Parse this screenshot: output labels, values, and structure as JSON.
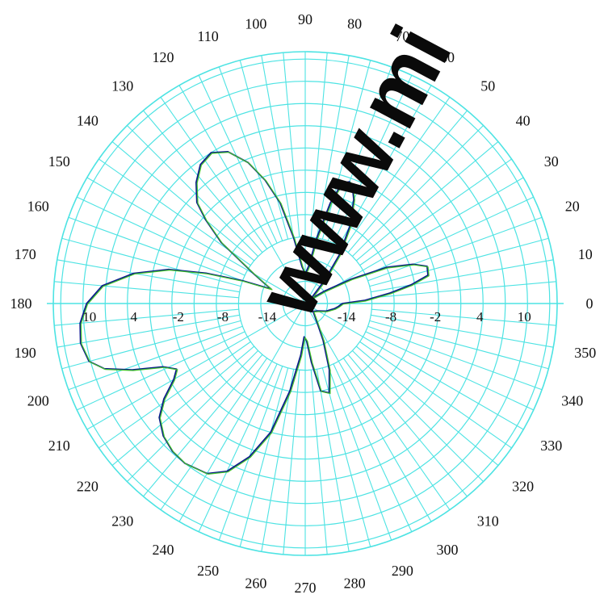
{
  "chart_data": {
    "type": "polar",
    "title": "",
    "angle_unit": "degrees",
    "angle_ticks": [
      "0",
      "10",
      "20",
      "30",
      "40",
      "50",
      "60",
      "70",
      "80",
      "90",
      "100",
      "110",
      "120",
      "130",
      "140",
      "150",
      "160",
      "170",
      "180",
      "190",
      "200",
      "210",
      "220",
      "230",
      "240",
      "250",
      "260",
      "270",
      "280",
      "290",
      "300",
      "310",
      "320",
      "330",
      "340",
      "350"
    ],
    "angular_grid_step_deg": 5,
    "radial_scale": {
      "min": -20,
      "max": 14,
      "rings": [
        -17,
        -14,
        -11,
        -8,
        -5,
        -2,
        1,
        4,
        7,
        10,
        13
      ],
      "labeled_rings_left": [
        "10",
        "4",
        "-2",
        "-8",
        "-14"
      ],
      "labeled_rings_right": [
        "-14",
        "-8",
        "-2",
        "4",
        "10"
      ]
    },
    "grid_color": "#4de3e3",
    "series": [
      {
        "color": "#0b1a8c",
        "points": [
          [
            0,
            -15
          ],
          [
            3,
            -12
          ],
          [
            7,
            -8.5
          ],
          [
            10,
            -5.5
          ],
          [
            13,
            -3
          ],
          [
            17,
            -2.8
          ],
          [
            20,
            -4.5
          ],
          [
            24,
            -8
          ],
          [
            28,
            -13
          ],
          [
            33,
            -17
          ],
          [
            40,
            -19
          ],
          [
            50,
            -16
          ],
          [
            55,
            -12
          ],
          [
            60,
            -8
          ],
          [
            65,
            -4.5
          ],
          [
            68,
            -3
          ],
          [
            70,
            -2.5
          ],
          [
            73,
            -3
          ],
          [
            76,
            -6
          ],
          [
            80,
            -11
          ],
          [
            85,
            -15
          ],
          [
            90,
            -16
          ],
          [
            95,
            -15
          ],
          [
            100,
            -11
          ],
          [
            104,
            -6
          ],
          [
            108,
            -2.5
          ],
          [
            112,
            0.5
          ],
          [
            117,
            3
          ],
          [
            122,
            4
          ],
          [
            127,
            3.5
          ],
          [
            132,
            2
          ],
          [
            137,
            0
          ],
          [
            140,
            -2.5
          ],
          [
            144,
            -6
          ],
          [
            150,
            -12
          ],
          [
            154,
            -14
          ],
          [
            157,
            -15
          ],
          [
            160,
            -11
          ],
          [
            163,
            -6
          ],
          [
            166,
            -1
          ],
          [
            170,
            3.5
          ],
          [
            175,
            7.5
          ],
          [
            180,
            9.5
          ],
          [
            185,
            10.5
          ],
          [
            190,
            10.8
          ],
          [
            195,
            10.2
          ],
          [
            198,
            8.5
          ],
          [
            201,
            5
          ],
          [
            204,
            1
          ],
          [
            207,
            -0.5
          ],
          [
            210,
            0.5
          ],
          [
            214,
            3
          ],
          [
            218,
            5
          ],
          [
            223,
            6.2
          ],
          [
            228,
            6.8
          ],
          [
            233,
            7
          ],
          [
            240,
            6.5
          ],
          [
            245,
            5
          ],
          [
            250,
            2
          ],
          [
            255,
            -2
          ],
          [
            260,
            -8
          ],
          [
            265,
            -13
          ],
          [
            268,
            -15.5
          ],
          [
            272,
            -15
          ],
          [
            276,
            -12
          ],
          [
            280,
            -8
          ],
          [
            285,
            -7.5
          ],
          [
            290,
            -10.5
          ],
          [
            296,
            -14.5
          ],
          [
            302,
            -17
          ],
          [
            315,
            -18.5
          ],
          [
            330,
            -18
          ],
          [
            340,
            -17
          ],
          [
            350,
            -16
          ],
          [
            355,
            -15.5
          ]
        ]
      },
      {
        "color": "#43c22a",
        "points": [
          [
            0,
            -15
          ],
          [
            3,
            -12
          ],
          [
            7,
            -8.5
          ],
          [
            10,
            -5.5
          ],
          [
            13,
            -3
          ],
          [
            17,
            -2.8
          ],
          [
            20,
            -4.5
          ],
          [
            24,
            -8
          ],
          [
            28,
            -13
          ],
          [
            33,
            -17
          ],
          [
            40,
            -19
          ],
          [
            50,
            -16
          ],
          [
            55,
            -12
          ],
          [
            60,
            -8
          ],
          [
            65,
            -4.5
          ],
          [
            68,
            -3
          ],
          [
            70,
            -2.5
          ],
          [
            73,
            -3
          ],
          [
            76,
            -6
          ],
          [
            80,
            -11
          ],
          [
            85,
            -15
          ],
          [
            90,
            -16
          ],
          [
            95,
            -15
          ],
          [
            100,
            -11
          ],
          [
            104,
            -6
          ],
          [
            108,
            -2.5
          ],
          [
            112,
            0.5
          ],
          [
            117,
            3
          ],
          [
            122,
            4
          ],
          [
            127,
            3.5
          ],
          [
            132,
            2
          ],
          [
            137,
            0
          ],
          [
            140,
            -2.5
          ],
          [
            144,
            -6
          ],
          [
            150,
            -12
          ],
          [
            154,
            -14
          ],
          [
            157,
            -15
          ],
          [
            160,
            -11
          ],
          [
            163,
            -6
          ],
          [
            166,
            -1
          ],
          [
            170,
            3.5
          ],
          [
            175,
            7.5
          ],
          [
            180,
            9.5
          ],
          [
            185,
            10.5
          ],
          [
            190,
            10.8
          ],
          [
            195,
            10.2
          ],
          [
            198,
            8.5
          ],
          [
            201,
            5
          ],
          [
            204,
            1
          ],
          [
            207,
            -0.5
          ],
          [
            210,
            0.5
          ],
          [
            214,
            3
          ],
          [
            218,
            5
          ],
          [
            223,
            6.2
          ],
          [
            228,
            6.8
          ],
          [
            233,
            7
          ],
          [
            240,
            6.5
          ],
          [
            245,
            5
          ],
          [
            250,
            2
          ],
          [
            255,
            -2
          ],
          [
            260,
            -8
          ],
          [
            265,
            -13
          ],
          [
            268,
            -15.5
          ],
          [
            272,
            -15
          ],
          [
            276,
            -12
          ],
          [
            280,
            -8
          ],
          [
            285,
            -7.5
          ],
          [
            290,
            -10.5
          ],
          [
            296,
            -14.5
          ],
          [
            302,
            -17
          ],
          [
            315,
            -18.5
          ],
          [
            330,
            -18
          ],
          [
            340,
            -17
          ],
          [
            350,
            -16
          ],
          [
            355,
            -15.5
          ]
        ]
      }
    ]
  },
  "watermark": {
    "text": "www.mi",
    "color": "#0a0a0a"
  }
}
